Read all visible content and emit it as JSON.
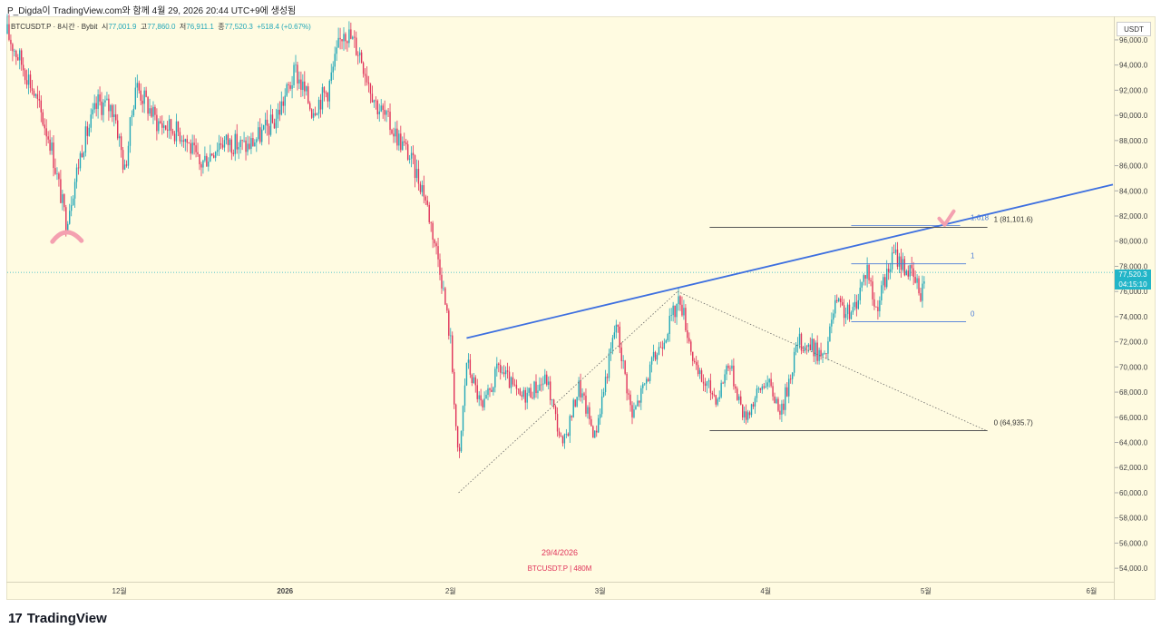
{
  "header": {
    "title": "P_Digda이 TradingView.com와 함께 4월 29, 2026 20:44 UTC+9에 생성됨"
  },
  "legend": {
    "symbol": "BTCUSDT.P · 8시간 · Bybit",
    "open_label": "시",
    "open": "77,001.9",
    "high_label": "고",
    "high": "77,860.0",
    "low_label": "저",
    "low": "76,911.1",
    "close_label": "종",
    "close": "77,520.3",
    "change": "+518.4 (+0.67%)"
  },
  "axis": {
    "currency": "USDT",
    "price_tag_value": "77,520.3",
    "price_tag_timer": "04:15:10"
  },
  "watermark": {
    "date": "29/4/2026",
    "symbol": "BTCUSDT.P | 480M"
  },
  "fib": {
    "upper_label_1618": "1.618",
    "upper_label_1": "1 (81,101.6)",
    "lower_label_0": "0 (64,935.7)",
    "inner_label_1": "1",
    "inner_label_0": "0"
  },
  "footer": {
    "logo_mark": "17",
    "brand": "TradingView"
  },
  "colors": {
    "up": "#22a7b8",
    "down": "#e0335a",
    "trendline": "#3d6fe0",
    "fib_line": "#555555",
    "fib_inner": "#4a7bd8",
    "annotation": "#f4a0b0"
  },
  "chart_data": {
    "type": "candlestick",
    "title": "BTCUSDT.P · 8시간 · Bybit",
    "ylabel": "USDT",
    "ylim": [
      53000,
      97800
    ],
    "y_ticks": [
      54000,
      56000,
      58000,
      60000,
      62000,
      64000,
      66000,
      68000,
      70000,
      72000,
      74000,
      76000,
      78000,
      80000,
      82000,
      84000,
      86000,
      88000,
      90000,
      92000,
      94000,
      96000
    ],
    "y_tick_labels": [
      "54,000.0",
      "56,000.0",
      "58,000.0",
      "60,000.0",
      "62,000.0",
      "64,000.0",
      "66,000.0",
      "68,000.0",
      "70,000.0",
      "72,000.0",
      "74,000.0",
      "76,000.0",
      "78,000.0",
      "80,000.0",
      "82,000.0",
      "84,000.0",
      "86,000.0",
      "88,000.0",
      "90,000.0",
      "92,000.0",
      "94,000.0",
      "96,000.0"
    ],
    "x_ticks": [
      {
        "label": "12월",
        "day": 26
      },
      {
        "label": "2026",
        "day": 57
      },
      {
        "label": "2월",
        "day": 88
      },
      {
        "label": "3월",
        "day": 116
      },
      {
        "label": "4월",
        "day": 147
      },
      {
        "label": "5월",
        "day": 177
      },
      {
        "label": "6월",
        "day": 208
      }
    ],
    "x_range_days": [
      5,
      212
    ],
    "last_price": 77520.3,
    "price_path": [
      {
        "day": 5,
        "price": 96500
      },
      {
        "day": 9,
        "price": 93000
      },
      {
        "day": 13,
        "price": 88000
      },
      {
        "day": 16,
        "price": 81500
      },
      {
        "day": 19,
        "price": 87500
      },
      {
        "day": 22,
        "price": 91000
      },
      {
        "day": 25,
        "price": 90500
      },
      {
        "day": 27,
        "price": 85500
      },
      {
        "day": 29,
        "price": 92500
      },
      {
        "day": 33,
        "price": 89500
      },
      {
        "day": 38,
        "price": 88500
      },
      {
        "day": 41,
        "price": 86000
      },
      {
        "day": 45,
        "price": 88000
      },
      {
        "day": 50,
        "price": 87500
      },
      {
        "day": 55,
        "price": 89500
      },
      {
        "day": 59,
        "price": 93500
      },
      {
        "day": 62,
        "price": 90500
      },
      {
        "day": 65,
        "price": 92000
      },
      {
        "day": 68,
        "price": 97000
      },
      {
        "day": 71,
        "price": 95000
      },
      {
        "day": 74,
        "price": 91000
      },
      {
        "day": 77,
        "price": 89000
      },
      {
        "day": 80,
        "price": 87000
      },
      {
        "day": 83,
        "price": 84000
      },
      {
        "day": 86,
        "price": 78000
      },
      {
        "day": 88,
        "price": 72000
      },
      {
        "day": 89.5,
        "price": 62000
      },
      {
        "day": 91,
        "price": 70500
      },
      {
        "day": 94,
        "price": 66500
      },
      {
        "day": 97,
        "price": 70000
      },
      {
        "day": 101,
        "price": 67500
      },
      {
        "day": 106,
        "price": 69000
      },
      {
        "day": 109,
        "price": 63500
      },
      {
        "day": 112,
        "price": 68500
      },
      {
        "day": 115,
        "price": 64500
      },
      {
        "day": 119,
        "price": 73500
      },
      {
        "day": 122,
        "price": 66000
      },
      {
        "day": 126,
        "price": 70500
      },
      {
        "day": 131,
        "price": 75500
      },
      {
        "day": 134,
        "price": 69500
      },
      {
        "day": 138,
        "price": 67500
      },
      {
        "day": 140,
        "price": 70500
      },
      {
        "day": 143,
        "price": 66000
      },
      {
        "day": 147,
        "price": 69000
      },
      {
        "day": 150,
        "price": 66500
      },
      {
        "day": 153,
        "price": 72000
      },
      {
        "day": 156,
        "price": 71500
      },
      {
        "day": 158,
        "price": 70500
      },
      {
        "day": 160,
        "price": 75000
      },
      {
        "day": 163,
        "price": 74000
      },
      {
        "day": 166,
        "price": 78000
      },
      {
        "day": 167.5,
        "price": 74500
      },
      {
        "day": 171,
        "price": 79000
      },
      {
        "day": 174,
        "price": 77500
      },
      {
        "day": 176,
        "price": 76000
      },
      {
        "day": 177,
        "price": 77520
      }
    ],
    "annotations": {
      "trendline": [
        {
          "day": 91,
          "price": 72300
        },
        {
          "day": 212,
          "price": 84500
        }
      ],
      "fib_outer": {
        "level_1618": 81101.6,
        "level_0": 64935.7,
        "x_from_day": 136.5,
        "x_to_day": 188.5
      },
      "fib_inner": {
        "level_1": 78200,
        "level_0": 73600,
        "x_from_day": 163,
        "x_to_day": 184.5
      },
      "pattern_points": [
        {
          "day": 89.5,
          "price": 60000
        },
        {
          "day": 130.5,
          "price": 76000
        },
        {
          "day": 188.5,
          "price": 64900
        }
      ]
    }
  }
}
